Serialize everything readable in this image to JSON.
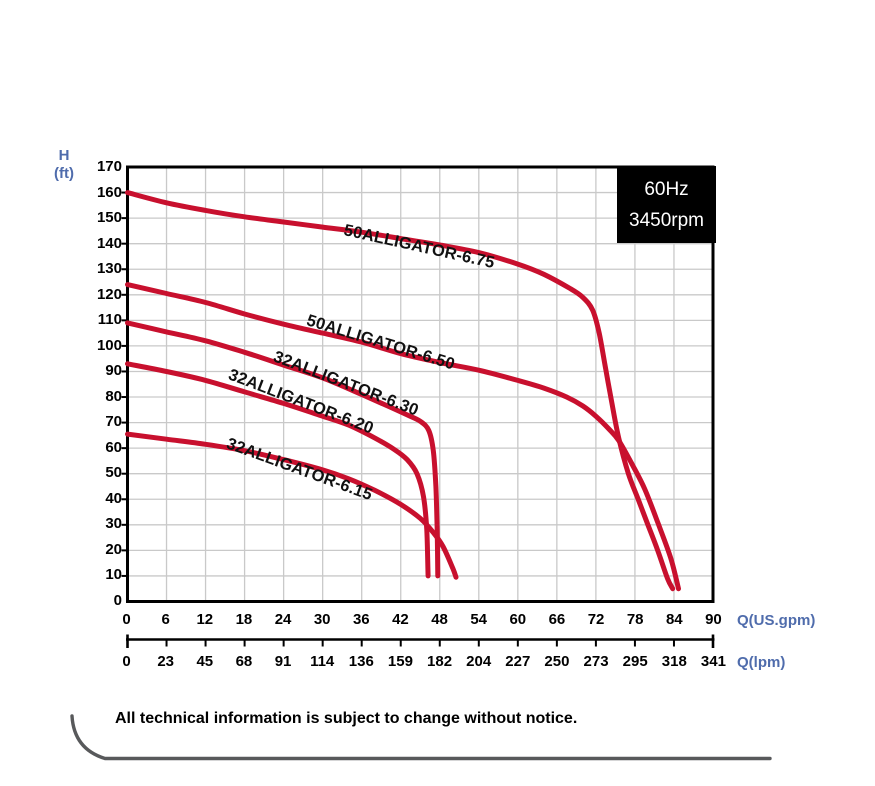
{
  "header": {
    "frequency": "60Hz",
    "speed": "3450rpm"
  },
  "axes": {
    "h_label": "H",
    "h_unit": "(ft)",
    "gpm_axis_label": "Q(US.gpm)",
    "lpm_axis_label": "Q(lpm)",
    "h_ticks": [
      "170",
      "160",
      "150",
      "140",
      "130",
      "120",
      "110",
      "100",
      "90",
      "80",
      "70",
      "60",
      "50",
      "40",
      "30",
      "20",
      "10",
      "0"
    ],
    "gpm_ticks": [
      "0",
      "6",
      "12",
      "18",
      "24",
      "30",
      "36",
      "42",
      "48",
      "54",
      "60",
      "66",
      "72",
      "78",
      "84",
      "90"
    ],
    "lpm_ticks": [
      "0",
      "23",
      "45",
      "68",
      "91",
      "114",
      "136",
      "159",
      "182",
      "204",
      "227",
      "250",
      "273",
      "295",
      "318",
      "341"
    ]
  },
  "curve_labels": [
    {
      "text": "50ALLIGATOR-6.75"
    },
    {
      "text": "50ALLIGATOR-6.50"
    },
    {
      "text": "32ALLIGATOR-6.30"
    },
    {
      "text": "32ALLIGATOR-6.20"
    },
    {
      "text": "32ALLIGATOR-6.15"
    }
  ],
  "footer": {
    "note": "All technical information is subject to change without notice."
  },
  "colors": {
    "curve_red": "#C8102E",
    "label_blue": "#4F6CAC",
    "grid_gray": "#C9C9C9",
    "axis_black": "#000000",
    "decor_gray": "#58595B"
  },
  "chart_data": {
    "type": "line",
    "title": "",
    "ylabel": "H (ft)",
    "xlabel": "Q(US.gpm)",
    "x2label": "Q(lpm)",
    "xlim": [
      0,
      90
    ],
    "ylim": [
      0,
      170
    ],
    "x_ticks_gpm": [
      0,
      6,
      12,
      18,
      24,
      30,
      36,
      42,
      48,
      54,
      60,
      66,
      72,
      78,
      84,
      90
    ],
    "x_ticks_lpm": [
      0,
      23,
      45,
      68,
      91,
      114,
      136,
      159,
      182,
      204,
      227,
      250,
      273,
      295,
      318,
      341
    ],
    "y_tick_step": 10,
    "grid": true,
    "annotations": [
      "60Hz",
      "3450rpm"
    ],
    "series": [
      {
        "name": "50ALLIGATOR-6.75",
        "points": [
          [
            0,
            160
          ],
          [
            6,
            156
          ],
          [
            12,
            153
          ],
          [
            18,
            150.5
          ],
          [
            24,
            148.5
          ],
          [
            30,
            146.5
          ],
          [
            36,
            144.5
          ],
          [
            42,
            142
          ],
          [
            48,
            139.5
          ],
          [
            54,
            136.5
          ],
          [
            60,
            132
          ],
          [
            64,
            128
          ],
          [
            68,
            122.5
          ],
          [
            70,
            119
          ],
          [
            71.5,
            114
          ],
          [
            72.5,
            105
          ],
          [
            73.5,
            91
          ],
          [
            74.5,
            77
          ],
          [
            75.5,
            64
          ],
          [
            77,
            50
          ],
          [
            78.5,
            40
          ],
          [
            80,
            30
          ],
          [
            81.5,
            20
          ],
          [
            83,
            9
          ],
          [
            83.8,
            5
          ]
        ]
      },
      {
        "name": "50ALLIGATOR-6.50",
        "points": [
          [
            0,
            124
          ],
          [
            6,
            120.5
          ],
          [
            12,
            117
          ],
          [
            18,
            112.5
          ],
          [
            24,
            108.5
          ],
          [
            30,
            105
          ],
          [
            36,
            101.5
          ],
          [
            42,
            97
          ],
          [
            48,
            93.5
          ],
          [
            54,
            90.5
          ],
          [
            60,
            86.5
          ],
          [
            64,
            83.5
          ],
          [
            67.5,
            80
          ],
          [
            70,
            76.5
          ],
          [
            72,
            72.5
          ],
          [
            74,
            67.5
          ],
          [
            75.5,
            63
          ],
          [
            77.5,
            54
          ],
          [
            79.5,
            44
          ],
          [
            81.5,
            31
          ],
          [
            83.5,
            17
          ],
          [
            84.7,
            5
          ]
        ]
      },
      {
        "name": "32ALLIGATOR-6.30",
        "points": [
          [
            0,
            109
          ],
          [
            6,
            105.5
          ],
          [
            12,
            102
          ],
          [
            18,
            97.5
          ],
          [
            24,
            92.5
          ],
          [
            30,
            87.5
          ],
          [
            36,
            81
          ],
          [
            40,
            76.5
          ],
          [
            43,
            73
          ],
          [
            45,
            70.5
          ],
          [
            46.3,
            67
          ],
          [
            47,
            59
          ],
          [
            47.4,
            45
          ],
          [
            47.6,
            28
          ],
          [
            47.7,
            10
          ]
        ]
      },
      {
        "name": "32ALLIGATOR-6.20",
        "points": [
          [
            0,
            93
          ],
          [
            6,
            90
          ],
          [
            12,
            86.5
          ],
          [
            18,
            82
          ],
          [
            24,
            77.5
          ],
          [
            30,
            72.5
          ],
          [
            34,
            69
          ],
          [
            38,
            64
          ],
          [
            41,
            59.5
          ],
          [
            43,
            55.5
          ],
          [
            44.5,
            50
          ],
          [
            45.5,
            41
          ],
          [
            46,
            28
          ],
          [
            46.2,
            10
          ]
        ]
      },
      {
        "name": "32ALLIGATOR-6.15",
        "points": [
          [
            0,
            65.5
          ],
          [
            6,
            63.5
          ],
          [
            12,
            61.5
          ],
          [
            18,
            59
          ],
          [
            24,
            55.5
          ],
          [
            30,
            51.5
          ],
          [
            34,
            48
          ],
          [
            38,
            43.5
          ],
          [
            42,
            38
          ],
          [
            45,
            32.5
          ],
          [
            47,
            27
          ],
          [
            48.5,
            21.5
          ],
          [
            50,
            13
          ],
          [
            50.5,
            9.5
          ]
        ]
      }
    ]
  }
}
